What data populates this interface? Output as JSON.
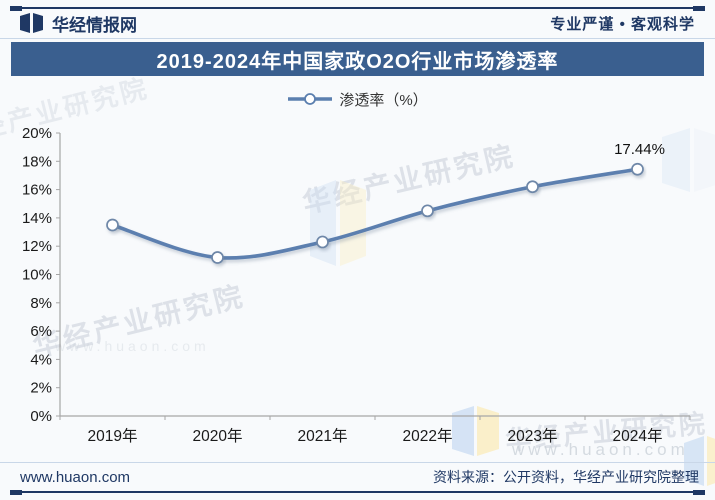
{
  "header": {
    "logo_text": "华经情报网",
    "slogan": "专业严谨 • 客观科学"
  },
  "title_banner": {
    "text": "2019-2024年中国家政O2O行业市场渗透率",
    "bg": "#3a5f8f",
    "color": "#ffffff"
  },
  "legend": {
    "label": "渗透率（%）"
  },
  "chart_data": {
    "type": "line",
    "title": "2019-2024年中国家政O2O行业市场渗透率",
    "categories": [
      "2019年",
      "2020年",
      "2021年",
      "2022年",
      "2023年",
      "2024年"
    ],
    "series": [
      {
        "name": "渗透率（%）",
        "values": [
          13.5,
          11.2,
          12.3,
          14.5,
          16.2,
          17.44
        ]
      }
    ],
    "ylim": [
      0,
      20
    ],
    "ytick_step": 2,
    "ytick_suffix": "%",
    "grid": false,
    "legend_position": "top",
    "point_label": {
      "index": 5,
      "text": "17.44%"
    },
    "line_color": "#5b7faf",
    "marker_fill": "#ffffff",
    "marker_stroke": "#6e87a8",
    "axis_color": "#a6a6a6",
    "tick_label_color": "#1a1a1a"
  },
  "watermarks": {
    "text": "华经产业研究院",
    "site": "www.huaon.com",
    "flag_blue": "#cfe0f4",
    "flag_yellow": "#fbeec2"
  },
  "footer": {
    "site": "www.huaon.com",
    "source": "资料来源：公开资料，华经产业研究院整理"
  }
}
